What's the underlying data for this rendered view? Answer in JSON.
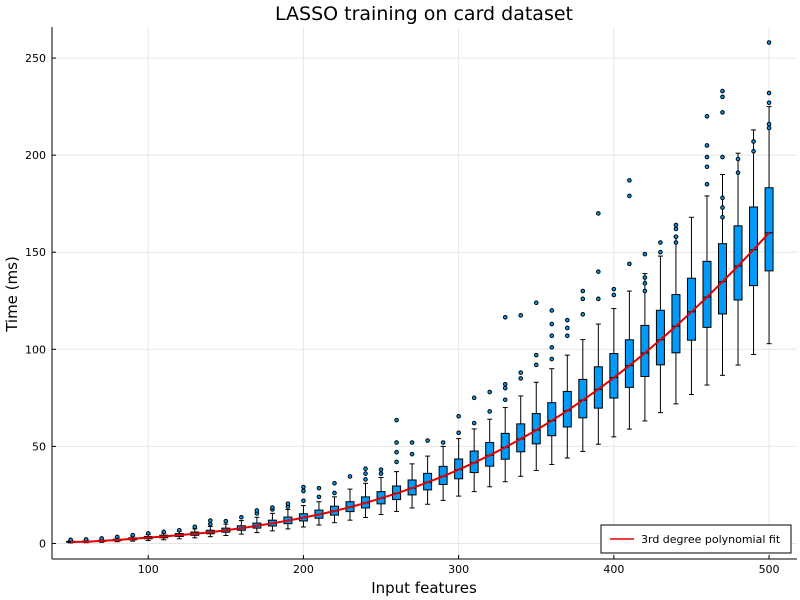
{
  "chart_data": {
    "type": "box",
    "title": "LASSO training on card dataset",
    "xlabel": "Input features",
    "ylabel": "Time (ms)",
    "xlim": [
      38,
      518
    ],
    "ylim": [
      -8,
      266
    ],
    "xticks": [
      100,
      200,
      300,
      400,
      500
    ],
    "yticks": [
      0,
      50,
      100,
      150,
      200,
      250
    ],
    "grid": true,
    "legend": {
      "position": "bottom-right",
      "entries": [
        "3rd degree polynomial fit"
      ]
    },
    "colors": {
      "box_fill": "#009af9",
      "fit_line": "#e20000",
      "outline": "#000000"
    },
    "series": [
      {
        "type": "box",
        "boxes": [
          {
            "x": 50,
            "lo": 0.3,
            "q1": 0.6,
            "med": 0.8,
            "q3": 1.1,
            "hi": 1.5,
            "out": [
              1.9
            ]
          },
          {
            "x": 60,
            "lo": 0.4,
            "q1": 0.7,
            "med": 0.9,
            "q3": 1.2,
            "hi": 1.7,
            "out": [
              2.1
            ]
          },
          {
            "x": 70,
            "lo": 0.6,
            "q1": 1.0,
            "med": 1.3,
            "q3": 1.6,
            "hi": 2.2,
            "out": [
              2.6
            ]
          },
          {
            "x": 80,
            "lo": 0.9,
            "q1": 1.4,
            "med": 1.8,
            "q3": 2.2,
            "hi": 3.0,
            "out": [
              3.4
            ]
          },
          {
            "x": 90,
            "lo": 1.2,
            "q1": 1.9,
            "med": 2.4,
            "q3": 2.9,
            "hi": 3.8,
            "out": [
              4.3
            ]
          },
          {
            "x": 100,
            "lo": 1.5,
            "q1": 2.4,
            "med": 3.0,
            "q3": 3.6,
            "hi": 4.6,
            "out": [
              5.2
            ]
          },
          {
            "x": 110,
            "lo": 1.9,
            "q1": 2.9,
            "med": 3.6,
            "q3": 4.3,
            "hi": 5.3,
            "out": [
              6.0
            ]
          },
          {
            "x": 120,
            "lo": 2.4,
            "q1": 3.6,
            "med": 4.3,
            "q3": 5.1,
            "hi": 6.3,
            "out": [
              6.8
            ]
          },
          {
            "x": 130,
            "lo": 2.9,
            "q1": 4.2,
            "med": 5.0,
            "q3": 5.9,
            "hi": 7.5,
            "out": [
              8.6
            ]
          },
          {
            "x": 140,
            "lo": 3.5,
            "q1": 5.0,
            "med": 5.8,
            "q3": 6.8,
            "hi": 8.8,
            "out": [
              10.0,
              11.8
            ]
          },
          {
            "x": 150,
            "lo": 4.1,
            "q1": 5.8,
            "med": 6.8,
            "q3": 7.9,
            "hi": 10.0,
            "out": [
              11.5
            ]
          },
          {
            "x": 160,
            "lo": 4.8,
            "q1": 6.8,
            "med": 7.9,
            "q3": 9.1,
            "hi": 11.8,
            "out": [
              13.5
            ]
          },
          {
            "x": 170,
            "lo": 5.6,
            "q1": 7.9,
            "med": 9.1,
            "q3": 10.5,
            "hi": 13.5,
            "out": [
              15.5,
              17.0
            ]
          },
          {
            "x": 180,
            "lo": 6.5,
            "q1": 9.0,
            "med": 10.4,
            "q3": 12.0,
            "hi": 15.5,
            "out": [
              17.5,
              18.5
            ]
          },
          {
            "x": 190,
            "lo": 7.5,
            "q1": 10.2,
            "med": 11.8,
            "q3": 13.6,
            "hi": 17.5,
            "out": [
              19.0,
              20.5
            ]
          },
          {
            "x": 200,
            "lo": 8.5,
            "q1": 11.6,
            "med": 13.3,
            "q3": 15.3,
            "hi": 19.5,
            "out": [
              22.0,
              27.0,
              29.0
            ]
          },
          {
            "x": 210,
            "lo": 9.5,
            "q1": 13.0,
            "med": 14.9,
            "q3": 17.2,
            "hi": 21.5,
            "out": [
              24.0,
              28.5
            ]
          },
          {
            "x": 220,
            "lo": 10.7,
            "q1": 14.6,
            "med": 16.7,
            "q3": 19.2,
            "hi": 24.0,
            "out": [
              26.0,
              31.0
            ]
          },
          {
            "x": 230,
            "lo": 12.0,
            "q1": 16.4,
            "med": 18.7,
            "q3": 21.5,
            "hi": 28.0,
            "out": [
              34.5
            ]
          },
          {
            "x": 240,
            "lo": 13.4,
            "q1": 18.3,
            "med": 20.9,
            "q3": 24.0,
            "hi": 31.0,
            "out": [
              33.0,
              36.0,
              38.5
            ]
          },
          {
            "x": 250,
            "lo": 14.9,
            "q1": 20.4,
            "med": 23.3,
            "q3": 26.7,
            "hi": 34.0,
            "out": [
              36.0,
              38.0
            ]
          },
          {
            "x": 260,
            "lo": 16.5,
            "q1": 22.6,
            "med": 25.8,
            "q3": 29.6,
            "hi": 37.0,
            "out": [
              42.0,
              47.0,
              52.0,
              63.5
            ]
          },
          {
            "x": 270,
            "lo": 18.3,
            "q1": 25.0,
            "med": 28.5,
            "q3": 32.7,
            "hi": 41.0,
            "out": [
              46.0,
              52.0
            ]
          },
          {
            "x": 280,
            "lo": 20.2,
            "q1": 27.6,
            "med": 31.5,
            "q3": 36.1,
            "hi": 45.0,
            "out": [
              53.0
            ]
          },
          {
            "x": 290,
            "lo": 22.2,
            "q1": 30.4,
            "med": 34.6,
            "q3": 39.7,
            "hi": 50.0,
            "out": [
              52.0
            ]
          },
          {
            "x": 300,
            "lo": 24.4,
            "q1": 33.3,
            "med": 38.0,
            "q3": 43.5,
            "hi": 54.0,
            "out": [
              57.0,
              65.5
            ]
          },
          {
            "x": 310,
            "lo": 26.7,
            "q1": 36.5,
            "med": 41.6,
            "q3": 47.6,
            "hi": 59.0,
            "out": [
              62.0,
              75.0
            ]
          },
          {
            "x": 320,
            "lo": 29.2,
            "q1": 39.8,
            "med": 45.4,
            "q3": 52.0,
            "hi": 64.0,
            "out": [
              68.0,
              78.0
            ]
          },
          {
            "x": 330,
            "lo": 31.8,
            "q1": 43.4,
            "med": 49.5,
            "q3": 56.7,
            "hi": 70.0,
            "out": [
              74.0,
              80.0,
              82.0,
              116.5
            ]
          },
          {
            "x": 340,
            "lo": 34.6,
            "q1": 47.2,
            "med": 53.8,
            "q3": 61.6,
            "hi": 76.0,
            "out": [
              85.0,
              88.0,
              117.5
            ]
          },
          {
            "x": 350,
            "lo": 37.6,
            "q1": 51.3,
            "med": 58.4,
            "q3": 66.9,
            "hi": 83.0,
            "out": [
              92.0,
              97.0,
              124.0
            ]
          },
          {
            "x": 360,
            "lo": 40.7,
            "q1": 55.5,
            "med": 63.3,
            "q3": 72.5,
            "hi": 90.0,
            "out": [
              95.0,
              101.0,
              107.0,
              113.0,
              120.0
            ]
          },
          {
            "x": 370,
            "lo": 44.0,
            "q1": 60.0,
            "med": 68.4,
            "q3": 78.3,
            "hi": 97.0,
            "out": [
              107.0,
              111.0,
              115.0
            ]
          },
          {
            "x": 380,
            "lo": 47.4,
            "q1": 64.7,
            "med": 73.8,
            "q3": 84.5,
            "hi": 105.0,
            "out": [
              118.0,
              126.0,
              130.0
            ]
          },
          {
            "x": 390,
            "lo": 51.1,
            "q1": 69.7,
            "med": 79.4,
            "q3": 91.0,
            "hi": 113.0,
            "out": [
              126.0,
              140.0,
              170.0
            ]
          },
          {
            "x": 400,
            "lo": 54.9,
            "q1": 74.9,
            "med": 85.4,
            "q3": 97.8,
            "hi": 121.0,
            "out": [
              128.0,
              131.0
            ]
          },
          {
            "x": 410,
            "lo": 58.9,
            "q1": 80.4,
            "med": 91.6,
            "q3": 104.9,
            "hi": 130.0,
            "out": [
              144.0,
              179.0,
              187.0
            ]
          },
          {
            "x": 420,
            "lo": 63.1,
            "q1": 86.0,
            "med": 98.1,
            "q3": 112.3,
            "hi": 139.0,
            "out": [
              130.0,
              134.0,
              137.0,
              149.0
            ]
          },
          {
            "x": 430,
            "lo": 67.4,
            "q1": 92.0,
            "med": 104.9,
            "q3": 120.1,
            "hi": 148.0,
            "out": [
              150.0,
              155.0
            ]
          },
          {
            "x": 440,
            "lo": 71.9,
            "q1": 98.2,
            "med": 111.9,
            "q3": 128.2,
            "hi": 158.0,
            "out": [
              155.0,
              158.0,
              162.0,
              164.0
            ]
          },
          {
            "x": 450,
            "lo": 76.7,
            "q1": 104.7,
            "med": 119.3,
            "q3": 136.6,
            "hi": 168.0,
            "out": []
          },
          {
            "x": 460,
            "lo": 81.6,
            "q1": 111.3,
            "med": 126.9,
            "q3": 145.3,
            "hi": 179.0,
            "out": [
              185.0,
              194.0,
              199.0,
              205.0,
              220.0
            ]
          },
          {
            "x": 470,
            "lo": 86.6,
            "q1": 118.2,
            "med": 134.8,
            "q3": 154.4,
            "hi": 190.0,
            "out": [
              168.0,
              173.0,
              178.0,
              199.0,
              222.0,
              230.0,
              233.0
            ]
          },
          {
            "x": 480,
            "lo": 91.9,
            "q1": 125.4,
            "med": 142.9,
            "q3": 163.6,
            "hi": 201.0,
            "out": [
              191.0,
              198.0
            ]
          },
          {
            "x": 490,
            "lo": 97.3,
            "q1": 132.8,
            "med": 151.3,
            "q3": 173.3,
            "hi": 213.0,
            "out": [
              202.0,
              207.0
            ]
          },
          {
            "x": 500,
            "lo": 102.9,
            "q1": 140.4,
            "med": 160.0,
            "q3": 183.2,
            "hi": 225.0,
            "out": [
              214.0,
              216.0,
              227.0,
              232.0,
              258.0
            ]
          }
        ]
      },
      {
        "type": "line",
        "name": "3rd degree polynomial fit",
        "x": [
          50,
          60,
          70,
          80,
          90,
          100,
          110,
          120,
          130,
          140,
          150,
          160,
          170,
          180,
          190,
          200,
          210,
          220,
          230,
          240,
          250,
          260,
          270,
          280,
          290,
          300,
          310,
          320,
          330,
          340,
          350,
          360,
          370,
          380,
          390,
          400,
          410,
          420,
          430,
          440,
          450,
          460,
          470,
          480,
          490,
          500
        ],
        "y": [
          0.8,
          0.9,
          1.3,
          1.8,
          2.4,
          3.0,
          3.6,
          4.3,
          5.0,
          5.8,
          6.8,
          7.9,
          9.1,
          10.4,
          11.8,
          13.3,
          14.9,
          16.7,
          18.7,
          20.9,
          23.3,
          25.8,
          28.5,
          31.5,
          34.6,
          38.0,
          41.6,
          45.4,
          49.5,
          53.8,
          58.4,
          63.3,
          68.4,
          73.8,
          79.4,
          85.4,
          91.6,
          98.1,
          104.9,
          111.9,
          119.3,
          126.9,
          134.8,
          142.9,
          151.3,
          160.0
        ]
      }
    ]
  }
}
